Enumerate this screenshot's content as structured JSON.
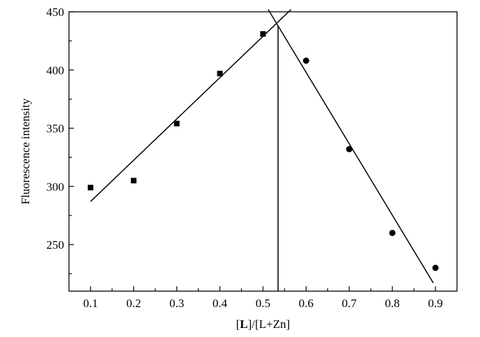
{
  "chart_data": {
    "type": "scatter",
    "xlabel": "[L]/[L+Zn]",
    "xlabel_parts": {
      "open_bracket": "[",
      "bold_symbol": "L",
      "rest": "]/[L+Zn]"
    },
    "ylabel": "Fluorescence intensity",
    "xlim": [
      0.05,
      0.95
    ],
    "ylim": [
      210,
      450
    ],
    "x_ticks": [
      0.1,
      0.2,
      0.3,
      0.4,
      0.5,
      0.6,
      0.7,
      0.8,
      0.9
    ],
    "x_tick_labels": [
      "0.1",
      "0.2",
      "0.3",
      "0.4",
      "0.5",
      "0.6",
      "0.7",
      "0.8",
      "0.9"
    ],
    "y_ticks": [
      250,
      300,
      350,
      400,
      450
    ],
    "y_tick_labels": [
      "250",
      "300",
      "350",
      "400",
      "450"
    ],
    "series": [
      {
        "marker": "square",
        "x": [
          0.1,
          0.2,
          0.3,
          0.4,
          0.5
        ],
        "y": [
          299,
          305,
          354,
          397,
          431
        ]
      },
      {
        "marker": "circle",
        "x": [
          0.6,
          0.7,
          0.8,
          0.9
        ],
        "y": [
          408,
          332,
          260,
          230
        ]
      }
    ],
    "fit_lines": [
      {
        "x": [
          0.1,
          0.565
        ],
        "y": [
          287,
          452
        ]
      },
      {
        "x": [
          0.512,
          0.895
        ],
        "y": [
          452,
          217
        ]
      }
    ],
    "vertical_line_x": 0.535,
    "grid": false,
    "legend": "none"
  }
}
